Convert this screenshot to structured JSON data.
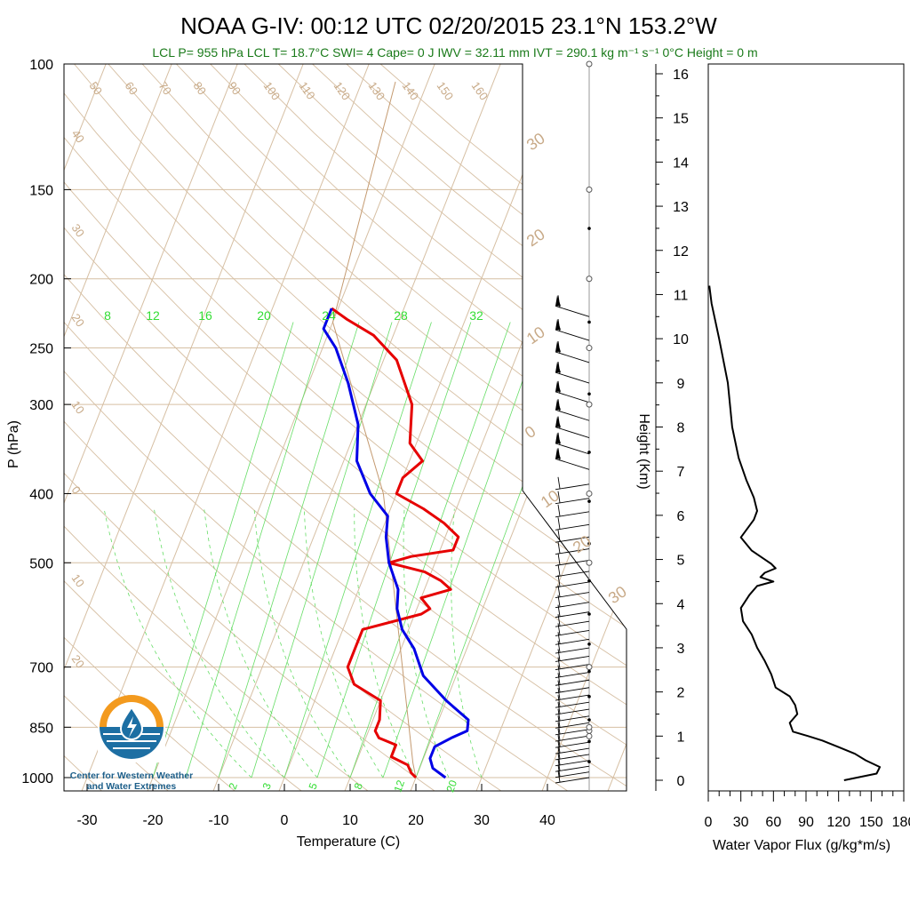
{
  "title": "NOAA G-IV: 00:12 UTC 02/20/2015  23.1°N 153.2°W",
  "subtitle": "LCL P= 955 hPa  LCL T= 18.7°C  SWI= 4  Cape= 0 J  IWV = 32.11 mm  IVT = 290.1 kg m⁻¹ s⁻¹  0°C Height = 0 m",
  "logo": {
    "line1": "Center for Western Weather",
    "line2": "and Water Extremes"
  },
  "colors": {
    "temperature": "#e60000",
    "dewpoint": "#0000e6",
    "mixing": "#33dd33",
    "background_lines": "#c8aa88",
    "subtitle": "#1a7a1a"
  },
  "chart_data": [
    {
      "type": "line",
      "name": "skew-t",
      "xlabel": "Temperature (C)",
      "ylabel": "P (hPa)",
      "x_ticks": [
        "-30",
        "-20",
        "-10",
        "0",
        "10",
        "20",
        "30",
        "40"
      ],
      "y_ticks": [
        "100",
        "150",
        "200",
        "250",
        "300",
        "400",
        "500",
        "700",
        "850",
        "1000"
      ],
      "isotherm_labels": [
        "50",
        "60",
        "70",
        "80",
        "90",
        "100",
        "110",
        "120",
        "130",
        "140",
        "150",
        "160"
      ],
      "mixing_ratio_labels_top": [
        "8",
        "12",
        "16",
        "20",
        "24",
        "28",
        "32"
      ],
      "mixing_ratio_labels_bottom": [
        "2",
        "3",
        "5",
        "8",
        "12",
        "20"
      ],
      "side_labels_left": [
        "40",
        "30",
        "20",
        "10",
        "0",
        "10",
        "20"
      ],
      "side_labels_right": [
        "30",
        "20",
        "10",
        "0",
        "10",
        "20",
        "30"
      ],
      "series": [
        {
          "color": "#e60000",
          "points": [
            [
              1000,
              20
            ],
            [
              985,
              19
            ],
            [
              960,
              18
            ],
            [
              935,
              15
            ],
            [
              900,
              15
            ],
            [
              880,
              12
            ],
            [
              860,
              11
            ],
            [
              830,
              11
            ],
            [
              780,
              10
            ],
            [
              740,
              5
            ],
            [
              700,
              3
            ],
            [
              660,
              3
            ],
            [
              620,
              3
            ],
            [
              590,
              11
            ],
            [
              580,
              12
            ],
            [
              560,
              10
            ],
            [
              545,
              14
            ],
            [
              530,
              12
            ],
            [
              515,
              9
            ],
            [
              500,
              3
            ],
            [
              490,
              6
            ],
            [
              480,
              12
            ],
            [
              460,
              12
            ],
            [
              440,
              9
            ],
            [
              420,
              5
            ],
            [
              400,
              0
            ],
            [
              380,
              0
            ],
            [
              360,
              2
            ],
            [
              340,
              -1
            ],
            [
              300,
              -3
            ],
            [
              260,
              -8
            ],
            [
              240,
              -13
            ],
            [
              228,
              -18
            ],
            [
              220,
              -21
            ]
          ]
        },
        {
          "color": "#0000e6",
          "points": [
            [
              1000,
              24.5
            ],
            [
              970,
              22
            ],
            [
              940,
              21
            ],
            [
              905,
              21
            ],
            [
              880,
              23
            ],
            [
              860,
              25
            ],
            [
              830,
              24.5
            ],
            [
              780,
              20
            ],
            [
              720,
              15
            ],
            [
              660,
              12
            ],
            [
              620,
              9
            ],
            [
              580,
              7
            ],
            [
              545,
              6
            ],
            [
              500,
              3
            ],
            [
              460,
              1
            ],
            [
              430,
              0
            ],
            [
              400,
              -4
            ],
            [
              360,
              -8
            ],
            [
              320,
              -10
            ],
            [
              280,
              -14
            ],
            [
              250,
              -18
            ],
            [
              235,
              -21
            ],
            [
              220,
              -21
            ]
          ]
        }
      ]
    },
    {
      "type": "line",
      "name": "water-vapor-flux",
      "xlabel": "Water Vapor Flux (g/kg*m/s)",
      "ylabel": "Height (Km)",
      "x_ticks": [
        "0",
        "30",
        "60",
        "90",
        "120",
        "150",
        "180"
      ],
      "y_ticks": [
        "0",
        "1",
        "2",
        "3",
        "4",
        "5",
        "6",
        "7",
        "8",
        "9",
        "10",
        "11",
        "12",
        "13",
        "14",
        "15",
        "16"
      ],
      "series": [
        {
          "color": "#000000",
          "points": [
            [
              0,
              125
            ],
            [
              0.15,
              155
            ],
            [
              0.3,
              158
            ],
            [
              0.45,
              145
            ],
            [
              0.6,
              135
            ],
            [
              0.75,
              120
            ],
            [
              0.9,
              105
            ],
            [
              1.0,
              92
            ],
            [
              1.1,
              78
            ],
            [
              1.3,
              75
            ],
            [
              1.5,
              82
            ],
            [
              1.7,
              80
            ],
            [
              1.9,
              75
            ],
            [
              2.1,
              62
            ],
            [
              2.4,
              58
            ],
            [
              2.7,
              52
            ],
            [
              3.0,
              45
            ],
            [
              3.3,
              40
            ],
            [
              3.6,
              32
            ],
            [
              3.9,
              30
            ],
            [
              4.2,
              38
            ],
            [
              4.4,
              45
            ],
            [
              4.5,
              60
            ],
            [
              4.6,
              48
            ],
            [
              4.7,
              52
            ],
            [
              4.8,
              62
            ],
            [
              4.9,
              58
            ],
            [
              5.0,
              52
            ],
            [
              5.2,
              40
            ],
            [
              5.5,
              30
            ],
            [
              5.9,
              42
            ],
            [
              6.1,
              45
            ],
            [
              6.4,
              42
            ],
            [
              6.8,
              35
            ],
            [
              7.3,
              28
            ],
            [
              8.0,
              22
            ],
            [
              9.0,
              18
            ],
            [
              10.0,
              10
            ],
            [
              10.8,
              3
            ],
            [
              11.2,
              1
            ]
          ]
        }
      ]
    }
  ]
}
